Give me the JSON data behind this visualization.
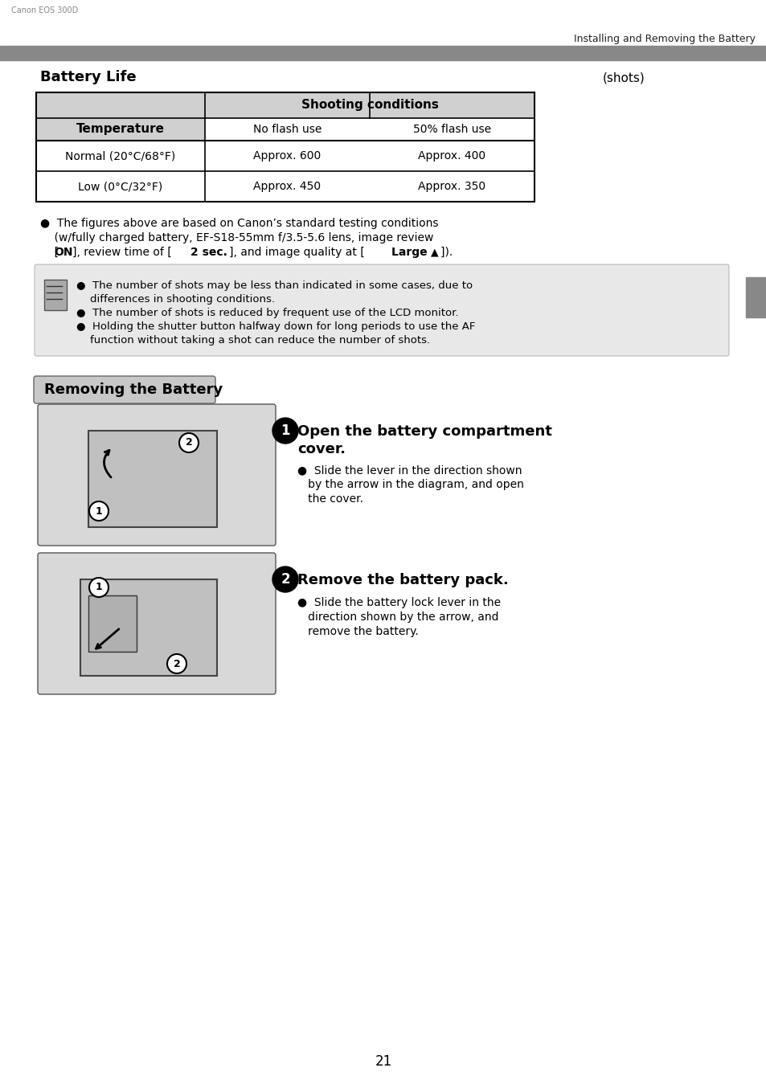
{
  "page_header": "Installing and Removing the Battery",
  "section1_title": "Battery Life",
  "shots_label": "(shots)",
  "table_header_col1": "Temperature",
  "table_header_col2": "Shooting conditions",
  "table_subheader_col2": "No flash use",
  "table_subheader_col3": "50% flash use",
  "table_row1_col1": "Normal (20°C/68°F)",
  "table_row1_col2": "Approx. 600",
  "table_row1_col3": "Approx. 400",
  "table_row2_col1": "Low (0°C/32°F)",
  "table_row2_col2": "Approx. 450",
  "table_row2_col3": "Approx. 350",
  "note1_line1": "●  The figures above are based on Canon’s standard testing conditions",
  "note1_line2": "    (w/fully charged battery, EF-S18-55mm f/3.5-5.6 lens, image review",
  "note1_line3": "    [ON], review time of [2 sec.], and image quality at [Large ▲]).",
  "note2_bullet1_line1": "●  The number of shots may be less than indicated in some cases, due to",
  "note2_bullet1_line2": "    differences in shooting conditions.",
  "note2_bullet2": "●  The number of shots is reduced by frequent use of the LCD monitor.",
  "note2_bullet3_line1": "●  Holding the shutter button halfway down for long periods to use the AF",
  "note2_bullet3_line2": "    function without taking a shot can reduce the number of shots.",
  "section2_title": "Removing the Battery",
  "step1_title": "Open the battery compartment\ncover.",
  "step1_bullet": "●  Slide the lever in the direction shown\n    by the arrow in the diagram, and open\n    the cover.",
  "step2_title": "Remove the battery pack.",
  "step2_bullet": "●  Slide the battery lock lever in the\n    direction shown by the arrow, and\n    remove the battery.",
  "page_number": "21",
  "bg_color": "#ffffff",
  "header_bar_color": "#888888",
  "table_header_bg": "#d0d0d0",
  "table_border_color": "#000000",
  "section2_title_bg": "#c8c8c8",
  "note_box_bg": "#e8e8e8"
}
